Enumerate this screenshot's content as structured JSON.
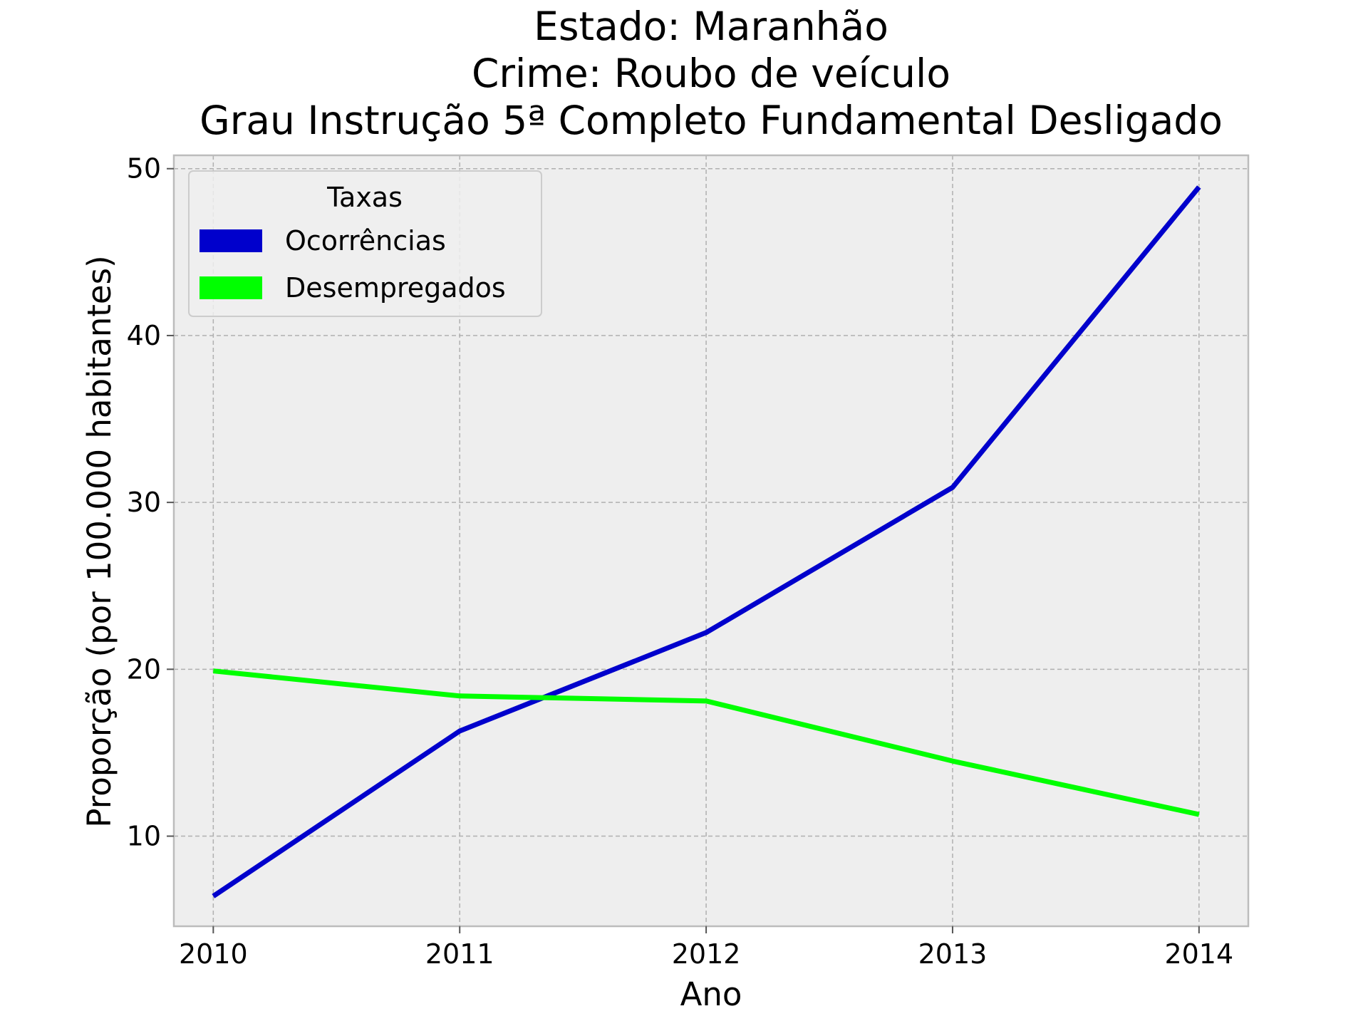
{
  "chart_data": {
    "type": "line",
    "title_lines": [
      "Estado: Maranhão",
      "Crime: Roubo de veículo",
      "Grau Instrução  5ª Completo Fundamental   Desligado"
    ],
    "xlabel": "Ano",
    "ylabel": "Proporção (por 100.000 habitantes)",
    "x": [
      2010,
      2011,
      2012,
      2013,
      2014
    ],
    "x_tick_labels": [
      "2010",
      "2011",
      "2012",
      "2013",
      "2014"
    ],
    "y_ticks": [
      10,
      20,
      30,
      40,
      50
    ],
    "y_tick_labels": [
      "10",
      "20",
      "30",
      "40",
      "50"
    ],
    "xlim": [
      2009.84,
      2014.2
    ],
    "ylim": [
      4.6,
      50.8
    ],
    "grid": true,
    "legend": {
      "title": "Taxas",
      "placement": "top-left"
    },
    "series": [
      {
        "name": "Ocorrências",
        "color": "#0000cc",
        "values": [
          6.4,
          16.3,
          22.2,
          30.9,
          48.9
        ]
      },
      {
        "name": "Desempregados",
        "color": "#00ff00",
        "values": [
          19.9,
          18.4,
          18.1,
          14.5,
          11.3
        ]
      }
    ]
  }
}
